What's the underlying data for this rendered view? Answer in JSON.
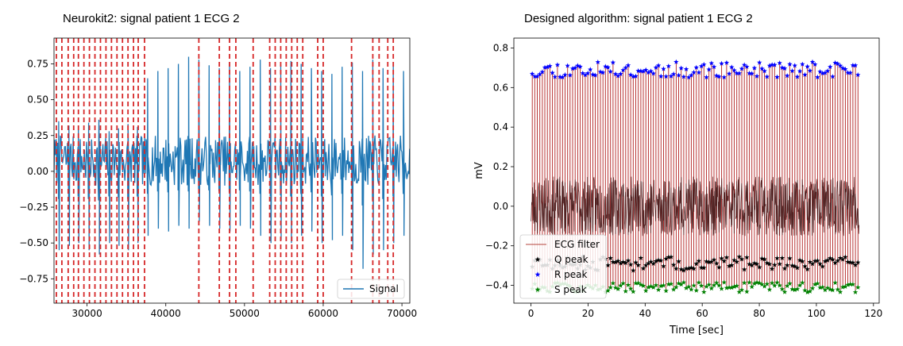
{
  "captions": {
    "left": "Neurokit2: signal patient 1 ECG 2",
    "right": "Designed algorithm: signal patient 1 ECG 2"
  },
  "chart_data": [
    {
      "type": "line",
      "title": "",
      "xlabel": "",
      "ylabel": "",
      "xlim": [
        25800,
        71000
      ],
      "ylim": [
        -0.92,
        0.93
      ],
      "x_ticks": [
        30000,
        40000,
        50000,
        60000,
        70000
      ],
      "y_ticks": [
        -0.75,
        -0.5,
        -0.25,
        0.0,
        0.25,
        0.5,
        0.75
      ],
      "y_tick_labels": [
        "−0.75",
        "−0.50",
        "−0.25",
        "0.00",
        "0.25",
        "0.50",
        "0.75"
      ],
      "legend": {
        "position": "lower-right",
        "entries": [
          {
            "name": "Signal",
            "color": "#1f77b4",
            "style": "line"
          }
        ]
      },
      "series": [
        {
          "name": "Signal",
          "color": "#1f77b4",
          "beat_x": [
            26400,
            27700,
            28900,
            30200,
            31500,
            32800,
            34000,
            35200,
            36400,
            37700,
            39000,
            40300,
            41600,
            42900,
            44200,
            45500,
            46800,
            48100,
            49400,
            50700,
            52000,
            53300,
            54600,
            55900,
            57200,
            58500,
            59800,
            61100,
            62400,
            63700,
            65000,
            66300,
            67600,
            68900,
            70200
          ],
          "beat_peak": [
            0.35,
            0.32,
            0.3,
            0.34,
            0.36,
            0.28,
            0.3,
            0.33,
            0.31,
            0.65,
            0.7,
            0.72,
            0.75,
            0.8,
            0.78,
            0.74,
            0.72,
            0.76,
            0.7,
            0.73,
            0.78,
            0.72,
            0.74,
            0.77,
            0.75,
            0.72,
            0.7,
            0.68,
            0.73,
            0.76,
            0.7,
            0.78,
            0.72,
            0.75,
            0.7
          ],
          "beat_trough": [
            -0.55,
            -0.52,
            -0.5,
            -0.55,
            -0.58,
            -0.5,
            -0.52,
            -0.55,
            -0.5,
            -0.45,
            -0.4,
            -0.42,
            -0.38,
            -0.4,
            -0.35,
            -0.38,
            -0.4,
            -0.42,
            -0.38,
            -0.4,
            -0.45,
            -0.5,
            -0.48,
            -0.5,
            -0.45,
            -0.42,
            -0.5,
            -0.48,
            -0.45,
            -0.55,
            -0.68,
            -0.58,
            -0.55,
            -0.5,
            -0.45
          ],
          "baseline_band": [
            -0.1,
            0.25
          ]
        }
      ],
      "annotations": {
        "detected_peaks_x": [
          26100,
          26800,
          27600,
          28300,
          28900,
          29600,
          30300,
          31000,
          31700,
          32400,
          33100,
          33800,
          34500,
          35200,
          35900,
          36500,
          37300,
          44200,
          46800,
          48100,
          48900,
          51100,
          53200,
          53900,
          54600,
          55300,
          56000,
          56700,
          57400,
          59300,
          60000,
          63600,
          66300,
          67100,
          68200,
          68900
        ],
        "style": "red dashed vertical line",
        "color": "#d62728"
      }
    },
    {
      "type": "line",
      "title": "",
      "xlabel": "Time [sec]",
      "ylabel": "mV",
      "xlim": [
        -6,
        122
      ],
      "ylim": [
        -0.49,
        0.85
      ],
      "x_ticks": [
        0,
        20,
        40,
        60,
        80,
        100,
        120
      ],
      "y_ticks": [
        -0.4,
        -0.2,
        0.0,
        0.2,
        0.4,
        0.6,
        0.8
      ],
      "y_tick_labels": [
        "−0.4",
        "−0.2",
        "0.0",
        "0.2",
        "0.4",
        "0.6",
        "0.8"
      ],
      "legend": {
        "position": "lower-left",
        "entries": [
          {
            "name": "ECG filter",
            "color": "#b5443c",
            "style": "line"
          },
          {
            "name": "Q peak",
            "color": "#000000",
            "style": "star"
          },
          {
            "name": "R peak",
            "color": "#0000ff",
            "style": "star"
          },
          {
            "name": "S peak",
            "color": "#008000",
            "style": "star"
          }
        ]
      },
      "series": [
        {
          "name": "ECG filter",
          "color": "#8b1a1a",
          "x_range": [
            0,
            115
          ],
          "band": [
            -0.15,
            0.15
          ],
          "beat_count": 130
        },
        {
          "name": "Q peak",
          "color": "#000000",
          "x_range": [
            0,
            115
          ],
          "mean": -0.29,
          "spread": 0.035,
          "count": 130
        },
        {
          "name": "R peak",
          "color": "#0000ff",
          "x_range": [
            0,
            115
          ],
          "mean": 0.69,
          "spread": 0.04,
          "count": 130
        },
        {
          "name": "S peak",
          "color": "#008000",
          "x_range": [
            0,
            115
          ],
          "mean": -0.41,
          "spread": 0.025,
          "count": 130
        }
      ]
    }
  ]
}
